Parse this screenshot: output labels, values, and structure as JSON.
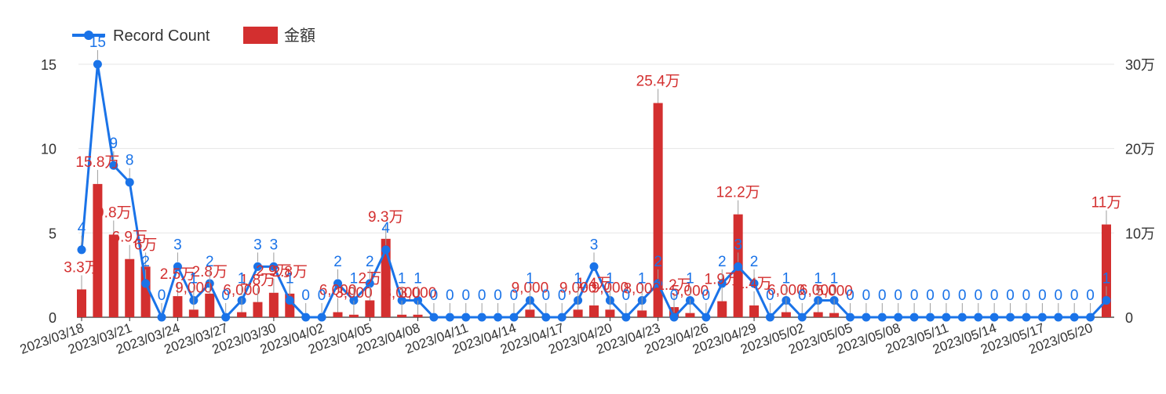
{
  "chart_data": {
    "type": "bar",
    "colors": {
      "bar": "#d32f2f",
      "line": "#1a73e8",
      "grid": "#e6e6e6",
      "axis": "#333333"
    },
    "legend": {
      "position": "top-left",
      "items": [
        {
          "label": "Record Count",
          "kind": "line",
          "color": "#1a73e8"
        },
        {
          "label": "金額",
          "kind": "bar",
          "color": "#d32f2f"
        }
      ]
    },
    "grid": true,
    "y_left": {
      "ylim": [
        0,
        15
      ],
      "ticks": [
        0,
        5,
        10,
        15
      ],
      "tick_labels": [
        "0",
        "5",
        "10",
        "15"
      ]
    },
    "y_right": {
      "ylim": [
        0,
        300000
      ],
      "ticks": [
        0,
        100000,
        200000,
        300000
      ],
      "tick_labels": [
        "0",
        "10万",
        "20万",
        "30万"
      ]
    },
    "x_tick_labels": [
      "2023/03/18",
      "2023/03/21",
      "2023/03/24",
      "2023/03/27",
      "2023/03/30",
      "2023/04/02",
      "2023/04/05",
      "2023/04/08",
      "2023/04/11",
      "2023/04/14",
      "2023/04/17",
      "2023/04/20",
      "2023/04/23",
      "2023/04/26",
      "2023/04/29",
      "2023/05/02",
      "2023/05/05",
      "2023/05/08",
      "2023/05/11",
      "2023/05/14",
      "2023/05/17",
      "2023/05/20"
    ],
    "categories": [
      "2023/03/18",
      "2023/03/19",
      "2023/03/20",
      "2023/03/21",
      "2023/03/22",
      "2023/03/23",
      "2023/03/24",
      "2023/03/25",
      "2023/03/26",
      "2023/03/27",
      "2023/03/28",
      "2023/03/29",
      "2023/03/30",
      "2023/03/31",
      "2023/04/01",
      "2023/04/02",
      "2023/04/03",
      "2023/04/04",
      "2023/04/05",
      "2023/04/06",
      "2023/04/07",
      "2023/04/08",
      "2023/04/09",
      "2023/04/10",
      "2023/04/11",
      "2023/04/12",
      "2023/04/13",
      "2023/04/14",
      "2023/04/15",
      "2023/04/16",
      "2023/04/17",
      "2023/04/18",
      "2023/04/19",
      "2023/04/20",
      "2023/04/21",
      "2023/04/22",
      "2023/04/23",
      "2023/04/24",
      "2023/04/25",
      "2023/04/26",
      "2023/04/27",
      "2023/04/28",
      "2023/04/29",
      "2023/04/30",
      "2023/05/01",
      "2023/05/02",
      "2023/05/03",
      "2023/05/04",
      "2023/05/05",
      "2023/05/06",
      "2023/05/07",
      "2023/05/08",
      "2023/05/09",
      "2023/05/10",
      "2023/05/11",
      "2023/05/12",
      "2023/05/13",
      "2023/05/14",
      "2023/05/15",
      "2023/05/16",
      "2023/05/17",
      "2023/05/18",
      "2023/05/19",
      "2023/05/20",
      "2023/05/21"
    ],
    "series": [
      {
        "name": "Record Count",
        "type": "line",
        "axis": "left",
        "values": [
          4,
          15,
          9,
          8,
          2,
          0,
          3,
          1,
          2,
          0,
          1,
          3,
          3,
          1,
          0,
          0,
          2,
          1,
          2,
          4,
          1,
          1,
          0,
          0,
          0,
          0,
          0,
          0,
          1,
          0,
          0,
          1,
          3,
          1,
          0,
          1,
          2,
          0,
          1,
          0,
          2,
          3,
          2,
          0,
          1,
          0,
          1,
          1,
          0,
          0,
          0,
          0,
          0,
          0,
          0,
          0,
          0,
          0,
          0,
          0,
          0,
          0,
          0,
          0,
          1
        ],
        "labels": [
          "4",
          "15",
          "9",
          "8",
          "2",
          "0",
          "3",
          "1",
          "2",
          "0",
          "1",
          "3",
          "3",
          "1",
          "0",
          "0",
          "2",
          "1",
          "2",
          "4",
          "1",
          "1",
          "0",
          "0",
          "0",
          "0",
          "0",
          "0",
          "1",
          "0",
          "0",
          "1",
          "3",
          "1",
          "0",
          "1",
          "2",
          "0",
          "1",
          "0",
          "2",
          "3",
          "2",
          "0",
          "1",
          "0",
          "1",
          "1",
          "0",
          "0",
          "0",
          "0",
          "0",
          "0",
          "0",
          "0",
          "0",
          "0",
          "0",
          "0",
          "0",
          "0",
          "0",
          "0",
          "1"
        ]
      },
      {
        "name": "金額",
        "type": "bar",
        "axis": "right",
        "values": [
          33000,
          158000,
          98000,
          69000,
          60000,
          0,
          25000,
          9000,
          28000,
          0,
          6000,
          18000,
          29000,
          28000,
          0,
          0,
          6000,
          3000,
          20000,
          93000,
          3000,
          3000,
          0,
          0,
          0,
          0,
          0,
          0,
          9000,
          0,
          0,
          9000,
          14000,
          9000,
          0,
          8000,
          254000,
          12000,
          5000,
          0,
          19000,
          122000,
          14000,
          0,
          6000,
          0,
          6000,
          5000,
          0,
          0,
          0,
          0,
          0,
          0,
          0,
          0,
          0,
          0,
          0,
          0,
          0,
          0,
          0,
          0,
          110000
        ],
        "labels": [
          "3.3万",
          "15.8万",
          "9.8万",
          "6.9万",
          "6万",
          "",
          "2.5万",
          "9,000",
          "2.8万",
          "",
          "6,000",
          "1.8万",
          "2.9万",
          "2.8万",
          "",
          "",
          "6,000",
          "3,000",
          "2万",
          "9.3万",
          "3,000",
          "3,000",
          "",
          "",
          "",
          "",
          "",
          "",
          "9,000",
          "",
          "",
          "9,000",
          "1.4万",
          "9,000",
          "",
          "8,000",
          "25.4万",
          "1.2万",
          "5,000",
          "",
          "1.9万",
          "12.2万",
          "1.4万",
          "",
          "6,000",
          "",
          "6,000",
          "5,000",
          "",
          "",
          "",
          "",
          "",
          "",
          "",
          "",
          "",
          "",
          "",
          "",
          "",
          "",
          "",
          "",
          "11万"
        ]
      }
    ]
  }
}
